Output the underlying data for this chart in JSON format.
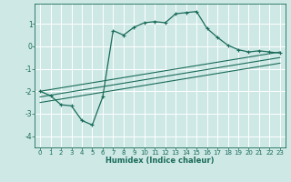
{
  "xlabel": "Humidex (Indice chaleur)",
  "bg_color": "#cde8e5",
  "line_color": "#1a6b5a",
  "grid_color": "#ffffff",
  "xlim": [
    -0.5,
    23.5
  ],
  "ylim": [
    -4.5,
    1.9
  ],
  "yticks": [
    -4,
    -3,
    -2,
    -1,
    0,
    1
  ],
  "xticks": [
    0,
    1,
    2,
    3,
    4,
    5,
    6,
    7,
    8,
    9,
    10,
    11,
    12,
    13,
    14,
    15,
    16,
    17,
    18,
    19,
    20,
    21,
    22,
    23
  ],
  "curve1_x": [
    0,
    1,
    2,
    3,
    4,
    5,
    6,
    7,
    8,
    9,
    10,
    11,
    12,
    13,
    14,
    15,
    16,
    17,
    18,
    19,
    20,
    21,
    22,
    23
  ],
  "curve1_y": [
    -2.0,
    -2.2,
    -2.6,
    -2.65,
    -3.3,
    -3.5,
    -2.25,
    0.7,
    0.5,
    0.85,
    1.05,
    1.1,
    1.05,
    1.45,
    1.5,
    1.55,
    0.8,
    0.4,
    0.05,
    -0.15,
    -0.25,
    -0.2,
    -0.25,
    -0.3
  ],
  "line1_x": [
    0,
    23
  ],
  "line1_y": [
    -2.0,
    -0.25
  ],
  "line2_x": [
    0,
    23
  ],
  "line2_y": [
    -2.25,
    -0.5
  ],
  "line3_x": [
    0,
    23
  ],
  "line3_y": [
    -2.5,
    -0.75
  ]
}
